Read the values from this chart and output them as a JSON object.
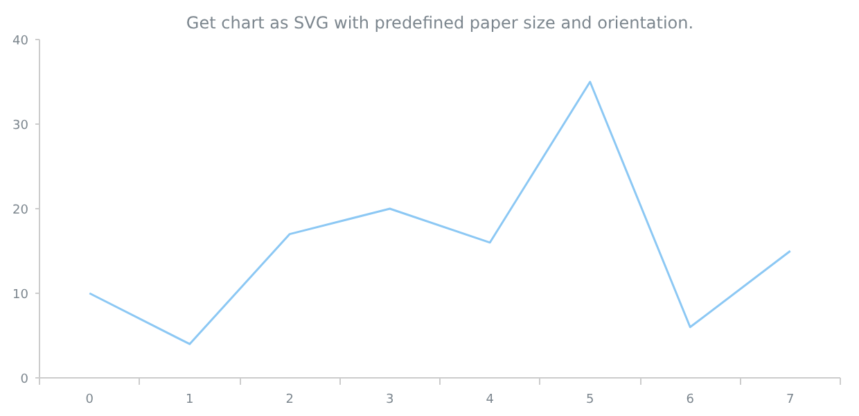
{
  "chart_data": {
    "type": "line",
    "title": "Get chart as SVG with predefined paper size and orientation.",
    "categories": [
      "0",
      "1",
      "2",
      "3",
      "4",
      "5",
      "6",
      "7"
    ],
    "series": [
      {
        "color": "#8cc8f4",
        "values": [
          10,
          4,
          17,
          20,
          16,
          35,
          6,
          15
        ]
      }
    ],
    "ylim": [
      0,
      40
    ],
    "yticks": [
      0,
      10,
      20,
      30,
      40
    ],
    "grid": false,
    "marker": "none",
    "line_style": "solid"
  }
}
